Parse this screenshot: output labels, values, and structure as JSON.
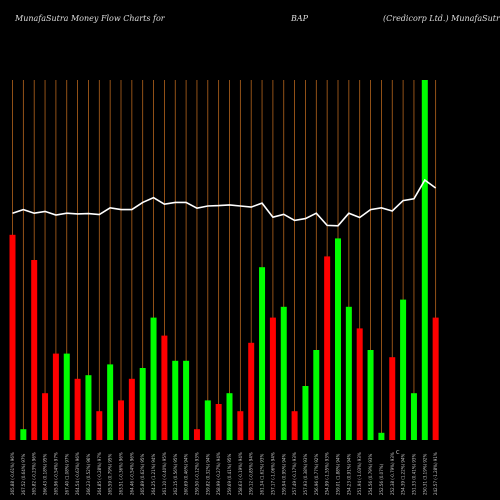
{
  "header": {
    "left": "MunafaSutra  Money Flow  Charts for",
    "center": "BAP",
    "right": "(Credicorp Ltd.) MunafaSutra.com"
  },
  "chart_data": {
    "type": "bar",
    "colors": {
      "up": "#00ff00",
      "down": "#ff0000",
      "grid": "#b5651d",
      "line": "#ffffff",
      "background": "#000000"
    },
    "ylim": [
      0,
      100
    ],
    "bars": [
      {
        "v": 57,
        "c": "down",
        "label": "265.88 (-0.61%) 96%"
      },
      {
        "v": 3,
        "c": "up",
        "label": "267.52 (0.64%) 97%"
      },
      {
        "v": 50,
        "c": "down",
        "label": "265.82 (-0.23%) 96%"
      },
      {
        "v": 13,
        "c": "down",
        "label": "266.43 (0.18%) 95%"
      },
      {
        "v": 24,
        "c": "down",
        "label": "265.96 (-0.54%) 97%"
      },
      {
        "v": 24,
        "c": "up",
        "label": "267.40 (1.08%) 97%"
      },
      {
        "v": 17,
        "c": "down",
        "label": "264.54 (-0.63%) 96%"
      },
      {
        "v": 18,
        "c": "up",
        "label": "266.23 (0.52%) 96%"
      },
      {
        "v": 8,
        "c": "down",
        "label": "264.85 (-0.28%) 97%"
      },
      {
        "v": 21,
        "c": "up",
        "label": "265.59 (0.79%) 95%"
      },
      {
        "v": 11,
        "c": "down",
        "label": "263.51 (-0.36%) 96%"
      },
      {
        "v": 17,
        "c": "down",
        "label": "264.46 (-0.54%) 96%"
      },
      {
        "v": 20,
        "c": "up",
        "label": "265.89 (0.62%) 95%"
      },
      {
        "v": 34,
        "c": "up",
        "label": "264.25 (1.21%) 94%"
      },
      {
        "v": 29,
        "c": "down",
        "label": "261.10 (-0.40%) 95%"
      },
      {
        "v": 22,
        "c": "up",
        "label": "262.15 (0.56%) 95%"
      },
      {
        "v": 22,
        "c": "up",
        "label": "260.69 (0.46%) 94%"
      },
      {
        "v": 3,
        "c": "down",
        "label": "259.50 (-0.12%) 93%"
      },
      {
        "v": 11,
        "c": "up",
        "label": "259.82 (0.32%) 94%"
      },
      {
        "v": 10,
        "c": "down",
        "label": "258.99 (-0.27%) 94%"
      },
      {
        "v": 13,
        "c": "up",
        "label": "259.69 (0.41%) 95%"
      },
      {
        "v": 8,
        "c": "down",
        "label": "258.63 (-0.19%) 94%"
      },
      {
        "v": 27,
        "c": "down",
        "label": "259.12 (-0.85%) 94%"
      },
      {
        "v": 48,
        "c": "up",
        "label": "261.34 (1.62%) 93%"
      },
      {
        "v": 34,
        "c": "down",
        "label": "257.17 (-1.06%) 94%"
      },
      {
        "v": 37,
        "c": "up",
        "label": "259.94 (0.95%) 94%"
      },
      {
        "v": 8,
        "c": "down",
        "label": "257.49 (-0.17%) 93%"
      },
      {
        "v": 15,
        "c": "up",
        "label": "257.93 (0.38%) 93%"
      },
      {
        "v": 25,
        "c": "up",
        "label": "256.96 (0.77%) 92%"
      },
      {
        "v": 51,
        "c": "down",
        "label": "254.99 (-1.55%) 93%"
      },
      {
        "v": 56,
        "c": "up",
        "label": "259.01 (1.88%) 94%"
      },
      {
        "v": 37,
        "c": "up",
        "label": "254.23 (0.91%) 94%"
      },
      {
        "v": 31,
        "c": "down",
        "label": "251.94 (-1.03%) 93%"
      },
      {
        "v": 25,
        "c": "up",
        "label": "254.56 (0.79%) 93%"
      },
      {
        "v": 2,
        "c": "up",
        "label": "252.56 (0.07%)"
      },
      {
        "v": 23,
        "c": "down",
        "label": "252.38 (-0.79%) 93%"
      },
      {
        "v": 39,
        "c": "up",
        "label": "254.39 (1.22%) 94%"
      },
      {
        "v": 13,
        "c": "up",
        "label": "251.33 (0.41%) 93%"
      },
      {
        "v": 100,
        "c": "up",
        "label": "250.31 (3.19%) 92%"
      },
      {
        "v": 34,
        "c": "down",
        "label": "242.57 (-1.28%) 91%"
      }
    ],
    "line": [
      63,
      64,
      63,
      63.5,
      62.5,
      63,
      62.8,
      62.9,
      62.6,
      64.5,
      64,
      64,
      66,
      67.3,
      65.5,
      66,
      66,
      64.4,
      65,
      65.1,
      65.3,
      65,
      64.7,
      65.8,
      61.9,
      62.7,
      61,
      61.5,
      63,
      59.6,
      59.5,
      63,
      61.8,
      64,
      64.5,
      63.6,
      66.5,
      67,
      72.2,
      70
    ]
  },
  "footer": {
    "mid_mark": "C"
  }
}
